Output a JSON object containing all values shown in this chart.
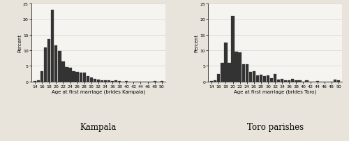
{
  "kampala_ages": [
    14,
    15,
    16,
    17,
    18,
    19,
    20,
    21,
    22,
    23,
    24,
    25,
    26,
    27,
    28,
    29,
    30,
    31,
    32,
    33,
    34,
    35,
    36,
    37,
    38,
    39,
    40,
    41,
    42,
    43,
    44,
    45,
    46,
    47,
    48,
    49,
    50
  ],
  "kampala_values": [
    0.2,
    0.4,
    3.2,
    11.0,
    13.5,
    23.0,
    11.5,
    9.7,
    6.5,
    4.7,
    4.5,
    3.2,
    3.0,
    2.9,
    2.8,
    1.7,
    1.2,
    0.9,
    0.7,
    0.5,
    0.4,
    0.3,
    0.1,
    0.3,
    0.1,
    0.0,
    0.1,
    0.0,
    0.0,
    0.0,
    0.0,
    0.0,
    0.0,
    0.0,
    0.2,
    0.0,
    0.1
  ],
  "toro_ages": [
    14,
    15,
    16,
    17,
    18,
    19,
    20,
    21,
    22,
    23,
    24,
    25,
    26,
    27,
    28,
    29,
    30,
    31,
    32,
    33,
    34,
    35,
    36,
    37,
    38,
    39,
    40,
    41,
    42,
    43,
    44,
    45,
    46,
    47,
    48,
    49,
    50
  ],
  "toro_values": [
    0.1,
    0.3,
    2.3,
    6.0,
    12.5,
    6.0,
    21.0,
    9.5,
    9.3,
    5.6,
    5.5,
    3.1,
    3.4,
    2.0,
    2.1,
    1.8,
    2.0,
    1.1,
    2.4,
    0.6,
    0.8,
    0.4,
    0.3,
    0.8,
    0.5,
    0.5,
    0.0,
    0.4,
    0.0,
    0.0,
    0.1,
    0.0,
    0.0,
    0.0,
    0.0,
    0.7,
    0.3
  ],
  "bar_color": "#333333",
  "bar_edge_color": "#333333",
  "ylabel": "Percent",
  "xlabel_kampala": "Age at first marriage (brides Kampala)",
  "xlabel_toro": "Age at first marriage (brides Toro)",
  "title_kampala": "Kampala",
  "title_toro": "Toro parishes",
  "ylim": [
    0,
    25
  ],
  "yticks": [
    0,
    5,
    10,
    15,
    20,
    25
  ],
  "xticks": [
    14,
    16,
    18,
    20,
    22,
    24,
    26,
    28,
    30,
    32,
    34,
    36,
    38,
    40,
    42,
    44,
    46,
    48,
    50
  ],
  "background_color": "#e8e4dc",
  "plot_bg_color": "#f5f4f0"
}
